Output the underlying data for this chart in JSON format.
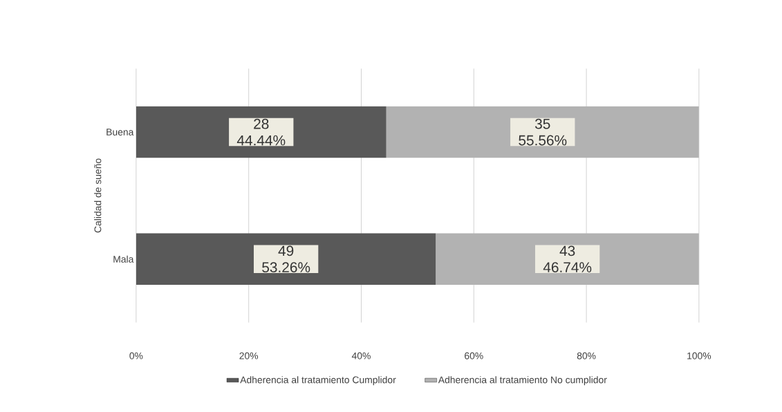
{
  "chart_data": {
    "type": "bar",
    "orientation": "horizontal",
    "stacked": true,
    "ylabel": "Calidad de sueño",
    "categories": [
      "Buena",
      "Mala"
    ],
    "series": [
      {
        "name": "Adherencia al tratamiento Cumplidor",
        "color": "#595959",
        "values": [
          44.44,
          53.26
        ],
        "value_labels": [
          "28 44.44%",
          "49 53.26%"
        ]
      },
      {
        "name": "Adherencia al tratamiento No cumplidor",
        "color": "#b2b2b2",
        "values": [
          55.56,
          46.74
        ],
        "value_labels": [
          "35 55.56%",
          "43 46.74%"
        ]
      }
    ],
    "xlim": [
      0,
      100
    ],
    "xticks": [
      {
        "value": 0,
        "label": "0%"
      },
      {
        "value": 20,
        "label": "20%"
      },
      {
        "value": 40,
        "label": "40%"
      },
      {
        "value": 60,
        "label": "60%"
      },
      {
        "value": 80,
        "label": "80%"
      },
      {
        "value": 100,
        "label": "100%"
      }
    ],
    "grid": "x",
    "legend": "bottom"
  }
}
